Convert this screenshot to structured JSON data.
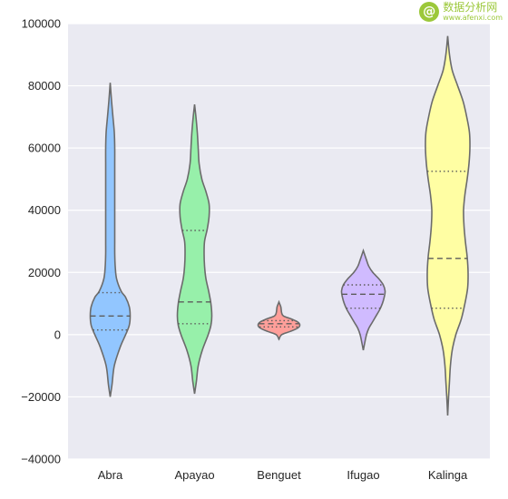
{
  "watermark": {
    "logo": "@",
    "name": "数据分析网",
    "url": "www.afenxi.com"
  },
  "colors": {
    "background": "#eaeaf2",
    "grid": "#ffffff",
    "outline": "#6b6b6b",
    "violins": [
      "#92c6ff",
      "#97f0aa",
      "#ff9f9a",
      "#d0bbff",
      "#fffea3"
    ]
  },
  "chart_data": {
    "type": "violin",
    "title": "",
    "xlabel": "",
    "ylabel": "",
    "ylim": [
      -40000,
      100000
    ],
    "y_ticks": [
      -40000,
      -20000,
      0,
      20000,
      40000,
      60000,
      80000,
      100000
    ],
    "y_tick_labels": [
      "−40000",
      "−20000",
      "0",
      "20000",
      "40000",
      "60000",
      "80000",
      "100000"
    ],
    "grid": true,
    "categories": [
      "Abra",
      "Apayao",
      "Benguet",
      "Ifugao",
      "Kalinga"
    ],
    "violins": [
      {
        "category": "Abra",
        "min": -20000,
        "max": 81000,
        "q1": 1500,
        "median": 6000,
        "q3": 13500,
        "density_y": [
          -20000,
          -16000,
          -10000,
          -4000,
          0,
          3000,
          6000,
          9000,
          12000,
          14000,
          18000,
          22000,
          26000,
          30000,
          35000,
          40000,
          45000,
          50000,
          55000,
          60000,
          65000,
          70000,
          75000,
          81000
        ],
        "half_width": [
          0,
          2.0,
          4.5,
          11.0,
          17.0,
          21.0,
          22.0,
          21.0,
          17.0,
          12.0,
          7.0,
          5.5,
          5.0,
          5.0,
          5.0,
          5.0,
          5.0,
          5.0,
          5.0,
          5.0,
          4.5,
          3.0,
          1.5,
          0
        ]
      },
      {
        "category": "Apayao",
        "min": -19000,
        "max": 74000,
        "q1": 3500,
        "median": 10500,
        "q3": 33500,
        "density_y": [
          -19000,
          -15000,
          -10000,
          -5000,
          0,
          3000,
          6000,
          10000,
          14000,
          18000,
          22000,
          26000,
          30000,
          34000,
          38000,
          42000,
          46000,
          50000,
          55000,
          60000,
          65000,
          70000,
          74000
        ],
        "half_width": [
          0,
          2.0,
          4.0,
          8.5,
          15.0,
          18.0,
          19.0,
          18.0,
          15.5,
          12.5,
          11.0,
          10.5,
          11.0,
          14.0,
          16.0,
          16.0,
          12.5,
          8.0,
          5.0,
          4.0,
          3.0,
          1.5,
          0
        ]
      },
      {
        "category": "Benguet",
        "min": -1500,
        "max": 10500,
        "q1": 2500,
        "median": 3500,
        "q3": 4500,
        "density_y": [
          -1500,
          0,
          1000,
          2000,
          3000,
          4000,
          5000,
          6000,
          7000,
          8000,
          9000,
          10500
        ],
        "half_width": [
          0,
          3.0,
          12.0,
          20.0,
          23.0,
          21.0,
          14.0,
          5.0,
          3.0,
          2.5,
          2.0,
          0
        ]
      },
      {
        "category": "Ifugao",
        "min": -5000,
        "max": 27000,
        "q1": 8500,
        "median": 13000,
        "q3": 16000,
        "density_y": [
          -5000,
          -2000,
          0,
          2000,
          4000,
          6000,
          8000,
          10000,
          12000,
          14000,
          16000,
          18000,
          20000,
          22000,
          24000,
          27000
        ],
        "half_width": [
          0,
          2.0,
          3.5,
          6.0,
          10.0,
          14.0,
          18.0,
          21.0,
          23.0,
          24.0,
          22.0,
          17.0,
          10.5,
          6.0,
          3.5,
          0
        ]
      },
      {
        "category": "Kalinga",
        "min": -26000,
        "max": 96000,
        "q1": 8500,
        "median": 24500,
        "q3": 52500,
        "density_y": [
          -26000,
          -20000,
          -15000,
          -10000,
          -5000,
          0,
          5000,
          10000,
          15000,
          20000,
          25000,
          30000,
          35000,
          40000,
          45000,
          50000,
          55000,
          60000,
          65000,
          70000,
          75000,
          80000,
          85000,
          90000,
          96000
        ],
        "half_width": [
          0,
          1.0,
          2.0,
          3.0,
          5.0,
          9.0,
          15.0,
          19.0,
          22.0,
          22.5,
          21.5,
          19.5,
          18.0,
          17.5,
          19.0,
          21.5,
          23.5,
          24.5,
          24.0,
          21.0,
          17.0,
          11.0,
          5.0,
          2.0,
          0
        ]
      }
    ]
  }
}
